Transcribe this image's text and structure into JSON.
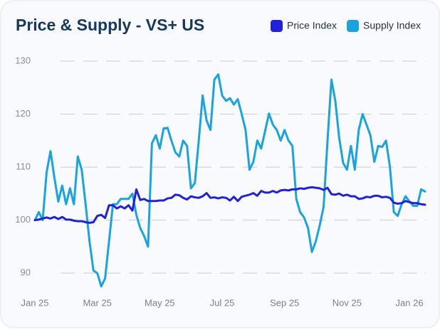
{
  "chart_data": {
    "type": "line",
    "title": "Price & Supply - VS+ US",
    "categories": [
      "Jan 25",
      null,
      null,
      null,
      null,
      null,
      null,
      null,
      null,
      null,
      null,
      null,
      null,
      null,
      null,
      null,
      "Mar 25",
      null,
      null,
      null,
      null,
      null,
      null,
      null,
      null,
      null,
      null,
      null,
      null,
      null,
      null,
      null,
      "May 25",
      null,
      null,
      null,
      null,
      null,
      null,
      null,
      null,
      null,
      null,
      null,
      null,
      null,
      null,
      null,
      "Jul 25",
      null,
      null,
      null,
      null,
      null,
      null,
      null,
      null,
      null,
      null,
      null,
      null,
      null,
      null,
      null,
      "Sep 25",
      null,
      null,
      null,
      null,
      null,
      null,
      null,
      null,
      null,
      null,
      null,
      null,
      null,
      null,
      null,
      "Nov 25",
      null,
      null,
      null,
      null,
      null,
      null,
      null,
      null,
      null,
      null,
      null,
      null,
      null,
      null,
      null,
      "Jan 26",
      null,
      null,
      null,
      null
    ],
    "series": [
      {
        "name": "Price Index",
        "color": "#2121d9",
        "values": [
          100,
          100.1,
          100.3,
          100.5,
          100.3,
          100.6,
          100.2,
          100.6,
          100.1,
          100.1,
          99.9,
          99.8,
          99.8,
          99.6,
          99.5,
          99.6,
          100.8,
          101,
          100.4,
          102.8,
          102.8,
          102.2,
          102.6,
          102.2,
          102.8,
          101.8,
          105.8,
          103.8,
          104,
          103.6,
          103.6,
          103.6,
          103.7,
          103.7,
          104.1,
          104.2,
          104.8,
          104.7,
          104.2,
          103.9,
          104.5,
          104.3,
          104.2,
          104.5,
          105.1,
          104.2,
          104.3,
          104.1,
          104.3,
          104.2,
          103.7,
          104.4,
          103.6,
          104.4,
          104.6,
          104.8,
          105.1,
          104.6,
          105.5,
          105.2,
          105.2,
          105.5,
          105.2,
          105.6,
          105.7,
          105.6,
          105.8,
          105.8,
          106,
          105.9,
          106.1,
          106.2,
          106.1,
          106,
          105.7,
          106.1,
          104.9,
          104.8,
          105,
          104.6,
          104.8,
          104.5,
          104.5,
          104,
          104.1,
          104.4,
          104.3,
          104.6,
          104.6,
          104.3,
          104.4,
          104.2,
          103.3,
          103.1,
          103.2,
          103.6,
          103.4,
          103.2,
          103.2,
          103,
          102.9
        ]
      },
      {
        "name": "Supply Index",
        "color": "#1aa3de",
        "values": [
          100,
          101.5,
          100,
          109,
          113,
          108,
          103.5,
          106.5,
          103,
          106,
          103,
          112,
          109.5,
          103,
          96,
          90.5,
          90,
          87.5,
          89,
          96,
          103,
          103,
          104,
          104,
          104,
          105,
          101,
          98.5,
          97,
          95,
          114.5,
          116,
          113.5,
          117.3,
          117.4,
          115,
          112.8,
          112,
          115,
          114,
          106,
          107,
          115,
          123.5,
          118.8,
          117,
          126.5,
          127.5,
          123.5,
          122.5,
          123,
          121.8,
          122.8,
          120,
          117,
          109.5,
          111,
          115,
          113.5,
          116.8,
          120.1,
          118,
          117,
          115,
          117,
          115,
          114,
          104,
          101.5,
          100.5,
          98.5,
          94,
          96,
          99,
          102.5,
          115,
          126.5,
          122.5,
          115.5,
          110.8,
          109.5,
          114,
          109.5,
          117,
          120,
          118,
          116,
          111,
          114,
          113.8,
          115,
          110,
          101.5,
          100.8,
          103,
          104.5,
          103.5,
          102.7,
          102.7,
          105.8,
          105.4
        ]
      }
    ],
    "ylim": [
      86,
      131
    ],
    "yticks": [
      90,
      100,
      110,
      120,
      130
    ],
    "grid": true,
    "legend": "top-right"
  }
}
